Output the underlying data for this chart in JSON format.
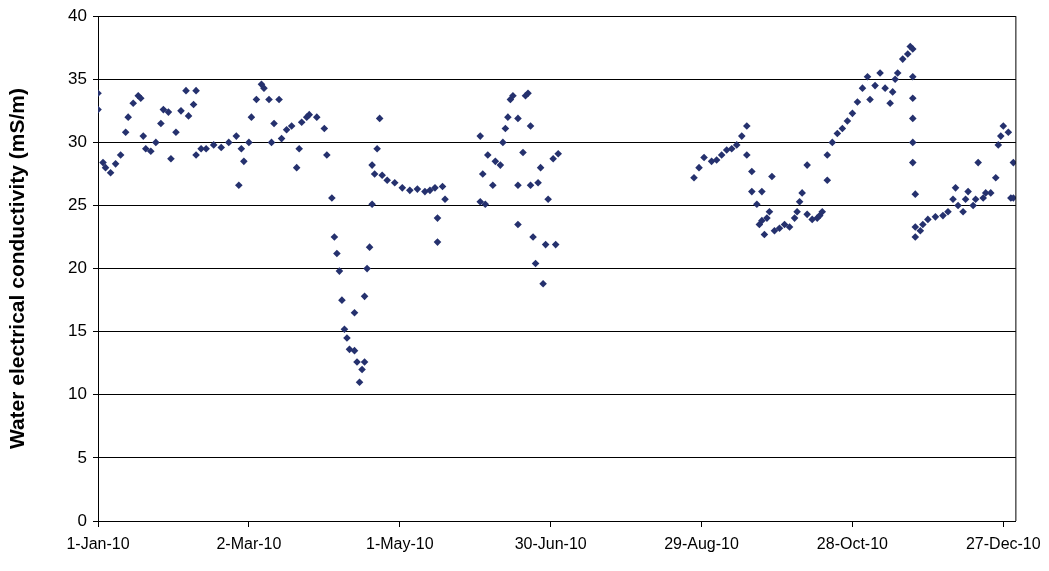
{
  "chart_data": {
    "type": "scatter",
    "ylabel": "Water electrical conductivity (mS/m)",
    "x": [
      "2010-01-01",
      "2010-01-01",
      "2010-01-03",
      "2010-01-04",
      "2010-01-06",
      "2010-01-08",
      "2010-01-10",
      "2010-01-12",
      "2010-01-13",
      "2010-01-15",
      "2010-01-17",
      "2010-01-18",
      "2010-01-19",
      "2010-01-20",
      "2010-01-22",
      "2010-01-24",
      "2010-01-26",
      "2010-01-27",
      "2010-01-29",
      "2010-01-30",
      "2010-02-01",
      "2010-02-03",
      "2010-02-05",
      "2010-02-06",
      "2010-02-08",
      "2010-02-09",
      "2010-02-09",
      "2010-02-11",
      "2010-02-13",
      "2010-02-16",
      "2010-02-19",
      "2010-02-22",
      "2010-02-25",
      "2010-02-26",
      "2010-02-27",
      "2010-02-28",
      "2010-03-02",
      "2010-03-03",
      "2010-03-05",
      "2010-03-07",
      "2010-03-08",
      "2010-03-10",
      "2010-03-11",
      "2010-03-12",
      "2010-03-14",
      "2010-03-15",
      "2010-03-17",
      "2010-03-19",
      "2010-03-21",
      "2010-03-22",
      "2010-03-23",
      "2010-03-25",
      "2010-03-26",
      "2010-03-29",
      "2010-04-01",
      "2010-04-02",
      "2010-04-04",
      "2010-04-05",
      "2010-04-06",
      "2010-04-07",
      "2010-04-08",
      "2010-04-09",
      "2010-04-10",
      "2010-04-11",
      "2010-04-13",
      "2010-04-13",
      "2010-04-14",
      "2010-04-15",
      "2010-04-16",
      "2010-04-17",
      "2010-04-17",
      "2010-04-18",
      "2010-04-19",
      "2010-04-20",
      "2010-04-20",
      "2010-04-21",
      "2010-04-22",
      "2010-04-23",
      "2010-04-24",
      "2010-04-26",
      "2010-04-29",
      "2010-05-02",
      "2010-05-05",
      "2010-05-08",
      "2010-05-11",
      "2010-05-13",
      "2010-05-15",
      "2010-05-16",
      "2010-05-16",
      "2010-05-18",
      "2010-05-19",
      "2010-06-02",
      "2010-06-02",
      "2010-06-03",
      "2010-06-04",
      "2010-06-05",
      "2010-06-07",
      "2010-06-08",
      "2010-06-10",
      "2010-06-11",
      "2010-06-12",
      "2010-06-13",
      "2010-06-14",
      "2010-06-15",
      "2010-06-17",
      "2010-06-17",
      "2010-06-17",
      "2010-06-19",
      "2010-06-20",
      "2010-06-21",
      "2010-06-22",
      "2010-06-22",
      "2010-06-23",
      "2010-06-24",
      "2010-06-25",
      "2010-06-26",
      "2010-06-27",
      "2010-06-28",
      "2010-06-29",
      "2010-07-01",
      "2010-07-02",
      "2010-07-03",
      "2010-08-26",
      "2010-08-28",
      "2010-08-30",
      "2010-09-02",
      "2010-09-04",
      "2010-09-06",
      "2010-09-08",
      "2010-09-10",
      "2010-09-12",
      "2010-09-14",
      "2010-09-16",
      "2010-09-16",
      "2010-09-18",
      "2010-09-18",
      "2010-09-20",
      "2010-09-21",
      "2010-09-22",
      "2010-09-22",
      "2010-09-23",
      "2010-09-24",
      "2010-09-25",
      "2010-09-26",
      "2010-09-27",
      "2010-09-29",
      "2010-10-01",
      "2010-10-03",
      "2010-10-05",
      "2010-10-06",
      "2010-10-07",
      "2010-10-08",
      "2010-10-10",
      "2010-10-10",
      "2010-10-12",
      "2010-10-14",
      "2010-10-15",
      "2010-10-16",
      "2010-10-18",
      "2010-10-18",
      "2010-10-20",
      "2010-10-22",
      "2010-10-24",
      "2010-10-26",
      "2010-10-28",
      "2010-10-30",
      "2010-11-01",
      "2010-11-03",
      "2010-11-04",
      "2010-11-06",
      "2010-11-08",
      "2010-11-10",
      "2010-11-12",
      "2010-11-13",
      "2010-11-14",
      "2010-11-15",
      "2010-11-17",
      "2010-11-19",
      "2010-11-20",
      "2010-11-21",
      "2010-11-21",
      "2010-11-21",
      "2010-11-21",
      "2010-11-21",
      "2010-11-21",
      "2010-11-22",
      "2010-11-22",
      "2010-11-22",
      "2010-11-24",
      "2010-11-25",
      "2010-11-27",
      "2010-11-30",
      "2010-12-03",
      "2010-12-05",
      "2010-12-07",
      "2010-12-08",
      "2010-12-09",
      "2010-12-11",
      "2010-12-12",
      "2010-12-13",
      "2010-12-15",
      "2010-12-16",
      "2010-12-17",
      "2010-12-19",
      "2010-12-20",
      "2010-12-22",
      "2010-12-24",
      "2010-12-25",
      "2010-12-26",
      "2010-12-27",
      "2010-12-29",
      "2010-12-30",
      "2010-12-31",
      "2010-12-31"
    ],
    "values": [
      33.9,
      32.6,
      28.4,
      28.0,
      27.6,
      28.3,
      29.0,
      30.8,
      32.0,
      33.1,
      33.7,
      33.5,
      30.5,
      29.5,
      29.3,
      30.0,
      31.5,
      32.6,
      32.4,
      28.7,
      30.8,
      32.5,
      34.1,
      32.1,
      33.0,
      34.1,
      29.0,
      29.5,
      29.5,
      29.8,
      29.6,
      30.0,
      30.5,
      26.6,
      29.5,
      28.5,
      30.0,
      32.0,
      33.4,
      34.6,
      34.3,
      33.4,
      30.0,
      31.5,
      33.4,
      30.3,
      31.0,
      31.3,
      28.0,
      29.5,
      31.6,
      32.0,
      32.2,
      32.0,
      31.1,
      29.0,
      25.6,
      22.5,
      21.2,
      19.8,
      17.5,
      15.2,
      14.5,
      13.6,
      13.5,
      16.5,
      12.6,
      11.0,
      12.0,
      12.6,
      17.8,
      20.0,
      21.7,
      25.1,
      28.2,
      27.5,
      29.5,
      31.9,
      27.4,
      27.0,
      26.8,
      26.4,
      26.2,
      26.3,
      26.1,
      26.2,
      26.4,
      24.0,
      22.1,
      26.5,
      25.5,
      30.5,
      25.3,
      27.5,
      25.1,
      29.0,
      26.6,
      28.5,
      28.2,
      30.0,
      31.1,
      32.0,
      33.4,
      33.7,
      31.9,
      26.6,
      23.5,
      29.2,
      33.7,
      33.9,
      31.3,
      26.6,
      22.5,
      20.4,
      26.8,
      28.0,
      18.8,
      21.9,
      25.5,
      28.7,
      21.9,
      29.1,
      27.2,
      28.0,
      28.8,
      28.5,
      28.6,
      29.0,
      29.4,
      29.5,
      29.8,
      30.5,
      31.3,
      29.0,
      27.7,
      26.1,
      25.1,
      23.5,
      23.8,
      26.1,
      22.7,
      24.0,
      24.5,
      27.3,
      23.0,
      23.2,
      23.5,
      23.3,
      24.0,
      24.5,
      25.3,
      26.0,
      28.2,
      24.3,
      23.9,
      24.0,
      24.2,
      24.5,
      27.0,
      29.0,
      30.0,
      30.7,
      31.1,
      31.7,
      32.3,
      33.2,
      34.3,
      35.2,
      33.4,
      34.5,
      35.5,
      34.3,
      33.1,
      34.0,
      35.0,
      35.5,
      36.6,
      37.0,
      37.6,
      37.4,
      35.2,
      33.5,
      31.9,
      30.0,
      28.4,
      25.9,
      23.3,
      22.5,
      23.0,
      23.5,
      23.9,
      24.1,
      24.2,
      24.5,
      25.5,
      26.4,
      25.0,
      24.5,
      25.5,
      26.1,
      25.0,
      25.5,
      28.4,
      25.6,
      26.0,
      26.0,
      27.2,
      29.8,
      30.5,
      31.3,
      30.8,
      25.6,
      25.6,
      28.4
    ],
    "color": "#25316e",
    "marker": "diamond",
    "xlim": [
      "2010-01-01",
      "2011-01-01"
    ],
    "xticks": [
      {
        "value": "2010-01-01",
        "label": "1-Jan-10"
      },
      {
        "value": "2010-03-02",
        "label": "2-Mar-10"
      },
      {
        "value": "2010-05-01",
        "label": "1-May-10"
      },
      {
        "value": "2010-06-30",
        "label": "30-Jun-10"
      },
      {
        "value": "2010-08-29",
        "label": "29-Aug-10"
      },
      {
        "value": "2010-10-28",
        "label": "28-Oct-10"
      },
      {
        "value": "2010-12-27",
        "label": "27-Dec-10"
      }
    ],
    "ylim": [
      0,
      40
    ],
    "yticks": [
      0,
      5,
      10,
      15,
      20,
      25,
      30,
      35,
      40
    ],
    "grid": "y"
  }
}
